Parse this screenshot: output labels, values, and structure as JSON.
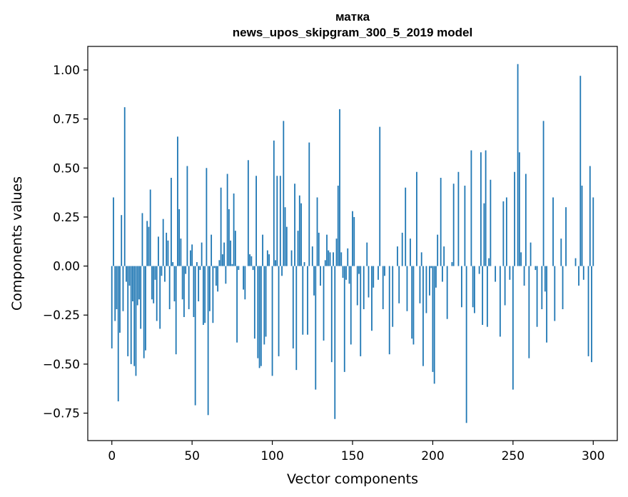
{
  "chart_data": {
    "type": "bar",
    "title": "матка",
    "subtitle": "news_upos_skipgram_300_5_2019 model",
    "xlabel": "Vector components",
    "ylabel": "Components values",
    "xlim": [
      -15,
      315
    ],
    "ylim": [
      -0.89,
      1.12
    ],
    "x_ticks": [
      0,
      50,
      100,
      150,
      200,
      250,
      300
    ],
    "y_ticks": [
      -0.75,
      -0.5,
      -0.25,
      0.0,
      0.25,
      0.5,
      0.75,
      1.0
    ],
    "y_tick_labels": [
      "−0.75",
      "−0.50",
      "−0.25",
      "0.00",
      "0.25",
      "0.50",
      "0.75",
      "1.00"
    ],
    "grid": false,
    "bar_color": "#1f77b4",
    "values": [
      -0.42,
      0.35,
      -0.28,
      -0.22,
      -0.69,
      -0.34,
      0.26,
      -0.23,
      0.81,
      -0.08,
      -0.46,
      -0.1,
      -0.5,
      -0.18,
      -0.51,
      -0.56,
      -0.2,
      -0.17,
      -0.32,
      0.27,
      -0.47,
      -0.43,
      0.23,
      0.2,
      0.39,
      -0.17,
      -0.19,
      -0.07,
      -0.28,
      0.15,
      -0.32,
      -0.05,
      0.24,
      -0.08,
      0.17,
      0.13,
      -0.22,
      0.45,
      0.02,
      -0.18,
      -0.45,
      0.66,
      0.29,
      0.14,
      -0.17,
      -0.26,
      -0.04,
      0.51,
      -0.22,
      0.08,
      0.11,
      -0.26,
      -0.71,
      0.02,
      -0.18,
      -0.02,
      0.12,
      -0.3,
      -0.29,
      0.5,
      -0.76,
      -0.23,
      0.16,
      -0.29,
      -0.01,
      -0.1,
      -0.13,
      0.03,
      0.4,
      0.06,
      0.12,
      -0.09,
      0.47,
      0.29,
      0.13,
      0.01,
      0.37,
      0.18,
      -0.39,
      -0.02,
      0.0,
      0.0,
      -0.12,
      -0.17,
      0.0,
      0.54,
      0.06,
      0.05,
      -0.02,
      -0.37,
      0.46,
      -0.47,
      -0.52,
      -0.51,
      0.16,
      -0.4,
      -0.36,
      0.08,
      0.06,
      0.0,
      -0.56,
      0.64,
      0.03,
      0.46,
      -0.46,
      0.46,
      -0.05,
      0.74,
      0.3,
      0.2,
      0.0,
      0.0,
      0.08,
      -0.42,
      0.42,
      -0.53,
      0.18,
      0.36,
      0.32,
      -0.35,
      0.02,
      0.0,
      -0.35,
      0.63,
      0.0,
      0.1,
      -0.15,
      -0.63,
      0.35,
      0.17,
      -0.1,
      0.0,
      -0.38,
      0.03,
      0.16,
      0.08,
      0.07,
      -0.49,
      0.07,
      -0.78,
      0.14,
      0.41,
      0.8,
      0.07,
      -0.06,
      -0.54,
      -0.07,
      0.09,
      -0.09,
      -0.4,
      0.28,
      0.25,
      0.0,
      -0.2,
      -0.04,
      -0.46,
      0.0,
      -0.22,
      0.0,
      0.12,
      -0.16,
      0.0,
      -0.33,
      -0.11,
      0.0,
      0.0,
      -0.07,
      0.71,
      0.0,
      -0.22,
      -0.05,
      0.0,
      0.0,
      -0.45,
      0.0,
      -0.31,
      0.0,
      0.0,
      0.1,
      -0.19,
      0.0,
      0.17,
      0.0,
      0.4,
      -0.23,
      0.0,
      0.14,
      -0.37,
      -0.4,
      0.0,
      0.48,
      0.0,
      -0.19,
      0.07,
      -0.51,
      0.0,
      -0.24,
      0.0,
      -0.15,
      -0.01,
      -0.54,
      -0.6,
      -0.11,
      0.16,
      0.0,
      0.45,
      -0.08,
      0.1,
      0.0,
      -0.27,
      0.0,
      0.0,
      0.02,
      0.42,
      0.0,
      0.0,
      0.48,
      0.0,
      -0.21,
      0.0,
      0.41,
      -0.8,
      0.0,
      0.0,
      0.59,
      -0.21,
      -0.24,
      0.0,
      0.0,
      -0.04,
      0.58,
      -0.3,
      0.32,
      0.59,
      -0.31,
      0.04,
      0.44,
      0.0,
      0.0,
      -0.08,
      0.0,
      0.0,
      -0.36,
      0.0,
      0.33,
      -0.2,
      0.35,
      0.0,
      -0.07,
      0.0,
      -0.63,
      0.48,
      0.0,
      1.03,
      0.58,
      0.07,
      0.0,
      -0.1,
      0.47,
      0.0,
      -0.47,
      0.12,
      0.0,
      0.0,
      -0.02,
      -0.31,
      0.0,
      0.0,
      -0.22,
      0.74,
      -0.13,
      -0.39,
      0.0,
      0.0,
      0.0,
      0.35,
      -0.28,
      0.0,
      0.0,
      0.0,
      0.14,
      -0.22,
      0.0,
      0.3,
      0.0,
      0.0,
      0.0,
      0.0,
      0.0,
      0.04,
      0.0,
      -0.1,
      0.97,
      0.41,
      -0.07,
      0.0,
      0.0,
      -0.46,
      0.51,
      -0.49,
      0.35
    ]
  }
}
